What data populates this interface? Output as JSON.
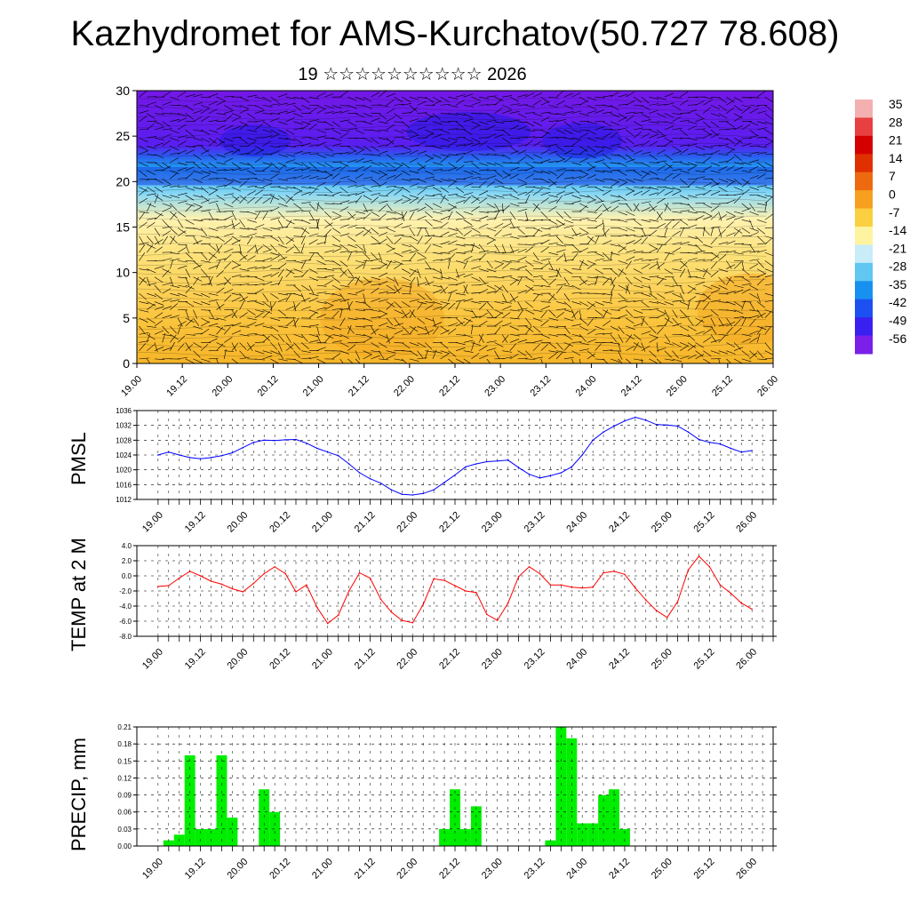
{
  "title": "Kazhydromet for AMS-Kurchatov(50.727 78.608)",
  "subtitle": "19 ☆☆☆☆☆☆☆☆☆☆ 2026",
  "colors": {
    "pressure_line": "#0000ff",
    "temp_line": "#ff0000",
    "precip_bar": "#00ee00",
    "grid": "#000000"
  },
  "colorbar": {
    "labels": [
      "35",
      "28",
      "21",
      "14",
      "7",
      "0",
      "-7",
      "-14",
      "-21",
      "-28",
      "-35",
      "-42",
      "-49",
      "-56"
    ],
    "colors": [
      "#f4b0b0",
      "#e84040",
      "#d40000",
      "#e03000",
      "#ee6a10",
      "#f7a020",
      "#fbd040",
      "#fef4a0",
      "#c8ecf8",
      "#60c8f0",
      "#1890f0",
      "#1c50f0",
      "#3a20f0",
      "#7a20e8"
    ]
  },
  "chart_data": [
    {
      "type": "heatmap",
      "name": "temperature cross-section with wind barbs",
      "ylabel": "",
      "ylim": [
        0,
        30
      ],
      "yticks": [
        "0",
        "5",
        "10",
        "15",
        "20",
        "25",
        "30"
      ],
      "xticks": [
        "19.00",
        "19.12",
        "20.00",
        "20.12",
        "21.00",
        "21.12",
        "22.00",
        "22.12",
        "23.00",
        "23.12",
        "24.00",
        "24.12",
        "25.00",
        "25.12",
        "26.00"
      ],
      "xlim": [
        0,
        14
      ],
      "colorbar_range": [
        -56,
        35
      ]
    },
    {
      "type": "line",
      "name": "PMSL",
      "ylabel": "PMSL",
      "ylim": [
        1012,
        1036
      ],
      "yticks": [
        "1012",
        "1016",
        "1020",
        "1024",
        "1028",
        "1032",
        "1036"
      ],
      "xticks": [
        "19.00",
        "19.12",
        "20.00",
        "20.12",
        "21.00",
        "21.12",
        "22.00",
        "22.12",
        "23.00",
        "23.12",
        "24.00",
        "24.12",
        "25.00",
        "25.12",
        "26.00"
      ],
      "xlim": [
        -0.5,
        14.5
      ],
      "x": [
        0,
        0.25,
        0.5,
        0.75,
        1,
        1.25,
        1.5,
        1.75,
        2,
        2.25,
        2.5,
        2.75,
        3,
        3.25,
        3.5,
        3.75,
        4,
        4.25,
        4.5,
        4.75,
        5,
        5.25,
        5.5,
        5.75,
        6,
        6.25,
        6.5,
        6.75,
        7,
        7.25,
        7.5,
        7.75,
        8,
        8.25,
        8.5,
        8.75,
        9,
        9.25,
        9.5,
        9.75,
        10,
        10.25,
        10.5,
        10.75,
        11,
        11.25,
        11.5,
        11.75,
        12,
        12.25,
        12.5,
        12.75,
        13,
        13.25,
        13.5,
        13.75,
        14
      ],
      "values": [
        1024.0,
        1024.8,
        1024.0,
        1023.3,
        1023.0,
        1023.3,
        1023.8,
        1024.6,
        1026.0,
        1027.4,
        1028.0,
        1027.9,
        1028.1,
        1028.2,
        1027.2,
        1025.8,
        1024.8,
        1023.8,
        1021.6,
        1019.2,
        1017.6,
        1016.4,
        1014.6,
        1013.4,
        1013.2,
        1013.6,
        1014.6,
        1016.6,
        1018.6,
        1020.8,
        1021.6,
        1022.2,
        1022.4,
        1022.6,
        1020.6,
        1018.8,
        1017.8,
        1018.4,
        1019.2,
        1020.8,
        1024.0,
        1028.0,
        1030.2,
        1031.8,
        1033.2,
        1034.2,
        1033.4,
        1032.2,
        1032.1,
        1031.8,
        1030.2,
        1028.2,
        1027.4,
        1027.0,
        1025.8,
        1024.8,
        1025.2
      ]
    },
    {
      "type": "line",
      "name": "TEMP at 2 M",
      "ylabel": "TEMP at 2 M",
      "ylim": [
        -8,
        4
      ],
      "yticks": [
        "-8.0",
        "-6.0",
        "-4.0",
        "-2.0",
        "0.0",
        "2.0",
        "4.0"
      ],
      "xticks": [
        "19.00",
        "19.12",
        "20.00",
        "20.12",
        "21.00",
        "21.12",
        "22.00",
        "22.12",
        "23.00",
        "23.12",
        "24.00",
        "24.12",
        "25.00",
        "25.12",
        "26.00"
      ],
      "xlim": [
        -0.5,
        14.5
      ],
      "x": [
        0,
        0.25,
        0.5,
        0.75,
        1,
        1.25,
        1.5,
        1.75,
        2,
        2.25,
        2.5,
        2.75,
        3,
        3.25,
        3.5,
        3.75,
        4,
        4.25,
        4.5,
        4.75,
        5,
        5.25,
        5.5,
        5.75,
        6,
        6.25,
        6.5,
        6.75,
        7,
        7.25,
        7.5,
        7.75,
        8,
        8.25,
        8.5,
        8.75,
        9,
        9.25,
        9.5,
        9.75,
        10,
        10.25,
        10.5,
        10.75,
        11,
        11.25,
        11.5,
        11.75,
        12,
        12.25,
        12.5,
        12.75,
        13,
        13.25,
        13.5,
        13.75,
        14
      ],
      "values": [
        -1.4,
        -1.3,
        -0.3,
        0.6,
        0.0,
        -0.7,
        -1.1,
        -1.7,
        -2.1,
        -1.0,
        0.3,
        1.2,
        0.3,
        -2.1,
        -1.2,
        -4.2,
        -6.3,
        -5.2,
        -2.0,
        0.4,
        -0.3,
        -3.1,
        -4.8,
        -5.9,
        -6.2,
        -3.8,
        -0.4,
        -0.6,
        -1.3,
        -2.0,
        -2.2,
        -5.1,
        -5.9,
        -3.6,
        -0.1,
        1.2,
        0.3,
        -1.2,
        -1.2,
        -1.5,
        -1.6,
        -1.5,
        0.4,
        0.6,
        0.2,
        -1.6,
        -3.2,
        -4.6,
        -5.5,
        -3.4,
        0.8,
        2.6,
        1.2,
        -1.2,
        -2.3,
        -3.6,
        -4.4
      ]
    },
    {
      "type": "bar",
      "name": "PRECIP, mm",
      "ylabel": "PRECIP, mm",
      "ylim": [
        0,
        0.21
      ],
      "yticks": [
        "0.00",
        "0.03",
        "0.06",
        "0.09",
        "0.12",
        "0.15",
        "0.18",
        "0.21"
      ],
      "xticks": [
        "19.00",
        "19.12",
        "20.00",
        "20.12",
        "21.00",
        "21.12",
        "22.00",
        "22.12",
        "23.00",
        "23.12",
        "24.00",
        "24.12",
        "25.00",
        "25.12",
        "26.00"
      ],
      "xlim": [
        -0.5,
        14.5
      ],
      "bar_width": 0.25,
      "x": [
        0.25,
        0.5,
        0.75,
        1.0,
        1.25,
        1.5,
        1.75,
        2.0,
        2.5,
        2.75,
        6.75,
        7.0,
        7.25,
        7.5,
        9.25,
        9.5,
        9.75,
        10.0,
        10.25,
        10.5,
        10.75,
        11.0
      ],
      "values": [
        0.01,
        0.02,
        0.16,
        0.03,
        0.03,
        0.16,
        0.05,
        0.0,
        0.1,
        0.06,
        0.03,
        0.1,
        0.03,
        0.07,
        0.01,
        0.21,
        0.19,
        0.04,
        0.04,
        0.09,
        0.1,
        0.03
      ]
    }
  ]
}
